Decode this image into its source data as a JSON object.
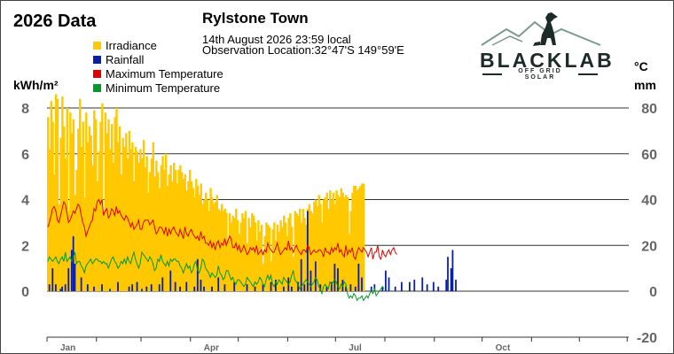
{
  "header": {
    "chart_heading": "2026 Data",
    "location_title": "Rylstone Town",
    "timestamp": "14th August 2026  23:59 local",
    "observation": "Observation Location:32°47'S 149°59'E"
  },
  "logo": {
    "word": "BLACKLAB",
    "tagline": "OFF GRID SOLAR",
    "colors": {
      "mountain": "#7a9a8f",
      "dog": "#1d2b28",
      "bar": "#1d2b28"
    }
  },
  "colors": {
    "irradiance": "#ffc800",
    "rainfall": "#0a1fa8",
    "max_temp": "#e00000",
    "min_temp": "#009a2a",
    "grid": "#333333",
    "tick_text": "#666666"
  },
  "chart_data": {
    "type": "bar",
    "title": "2026 Data",
    "left_axis": {
      "label": "kWh/m²",
      "ticks": [
        0,
        2,
        4,
        6,
        8
      ],
      "range": [
        -2,
        8
      ]
    },
    "right_axis": {
      "label_top": "°C",
      "label_bottom": "mm",
      "ticks": [
        -20,
        0,
        20,
        40,
        60,
        80
      ],
      "range": [
        -20,
        80
      ]
    },
    "x_axis": {
      "months": [
        "Jan",
        "Apr",
        "Jul",
        "Oct"
      ],
      "range_days": [
        1,
        365
      ]
    },
    "legend": [
      {
        "name": "Irradiance",
        "color_key": "irradiance"
      },
      {
        "name": "Rainfall",
        "color_key": "rainfall"
      },
      {
        "name": "Maximum Temperature",
        "color_key": "max_temp"
      },
      {
        "name": "Minimum Temperature",
        "color_key": "min_temp"
      }
    ],
    "grid": true,
    "series": [
      {
        "name": "Irradiance",
        "axis": "left",
        "kind": "bar",
        "values": [
          7.6,
          6.2,
          8.3,
          7.4,
          5.1,
          8.6,
          8.4,
          3.8,
          6.7,
          8.5,
          7.2,
          5.8,
          8.0,
          3.5,
          7.8,
          6.9,
          7.5,
          4.2,
          5.3,
          7.1,
          8.4,
          6.3,
          7.4,
          4.1,
          7.8,
          6.5,
          7.2,
          6.8,
          5.5,
          7.9,
          7.5,
          4.8,
          6.1,
          7.4,
          8.2,
          3.5,
          7.8,
          6.9,
          7.5,
          6.2,
          7.3,
          5.6,
          7.6,
          8.0,
          6.5,
          7.2,
          5.1,
          6.7,
          6.3,
          6.9,
          5.8,
          7.0,
          6.2,
          6.5,
          4.8,
          6.3,
          6.1,
          5.6,
          6.2,
          5.8,
          6.6,
          5.4,
          5.9,
          4.3,
          5.2,
          5.8,
          6.5,
          5.0,
          5.7,
          5.2,
          4.5,
          5.5,
          5.9,
          5.3,
          6.0,
          4.6,
          5.1,
          5.5,
          4.8,
          5.6,
          5.3,
          4.7,
          5.3,
          5.5,
          5.2,
          4.9,
          5.1,
          4.4,
          4.8,
          5.3,
          4.8,
          4.5,
          4.1,
          4.9,
          4.6,
          4.2,
          4.7,
          3.8,
          4.0,
          4.3,
          4.0,
          3.5,
          4.5,
          4.1,
          3.8,
          3.9,
          4.2,
          3.6,
          3.5,
          3.8,
          3.5,
          3.6,
          3.4,
          2.3,
          3.4,
          3.0,
          3.3,
          3.2,
          3.6,
          3.1,
          2.5,
          3.0,
          3.4,
          3.2,
          3.5,
          2.1,
          3.2,
          2.8,
          3.4,
          3.3,
          3.0,
          2.2,
          3.1,
          2.6,
          2.9,
          1.2,
          2.4,
          3.0,
          2.9,
          2.8,
          1.3,
          2.7,
          3.0,
          2.2,
          2.9,
          2.6,
          3.1,
          2.8,
          3.3,
          3.0,
          2.4,
          3.2,
          3.4,
          2.8,
          1.5,
          3.5,
          3.4,
          3.3,
          3.6,
          3.0,
          3.6,
          3.2,
          2.9,
          3.6,
          3.8,
          3.5,
          3.4,
          3.9,
          4.0,
          3.7,
          4.2,
          3.8,
          3.0,
          4.0,
          4.1,
          4.3,
          3.6,
          4.4,
          4.0,
          4.3,
          3.8,
          4.4,
          4.2,
          4.1,
          4.5,
          4.3,
          4.1,
          4.2,
          4.1,
          2.5,
          3.5,
          4.3,
          4.6,
          4.6,
          4.4,
          4.5,
          4.6,
          4.7,
          4.7
        ]
      },
      {
        "name": "Rainfall",
        "axis": "right",
        "kind": "bar",
        "values": [
          0,
          0,
          0,
          0,
          0,
          0,
          0,
          0,
          0,
          2,
          3,
          0,
          0,
          0,
          0,
          0,
          0,
          0,
          0,
          0,
          0,
          0,
          0,
          0,
          0,
          0,
          9,
          12,
          0,
          0,
          0,
          0,
          0,
          0,
          0,
          0,
          0,
          0,
          0,
          0,
          0,
          0,
          0,
          0,
          0,
          2,
          0,
          0,
          0,
          0,
          0,
          0,
          0,
          0,
          0,
          0,
          0,
          0,
          0,
          0,
          0,
          0,
          0,
          0,
          0,
          0,
          0,
          0,
          0,
          0,
          0,
          0,
          0,
          0,
          0,
          0,
          0,
          0,
          0,
          0,
          0,
          0,
          0,
          0,
          0,
          0,
          0,
          0,
          0,
          0,
          0,
          0,
          0,
          0,
          0,
          0,
          0,
          0,
          0,
          0,
          0,
          0,
          0,
          0,
          0,
          0,
          0,
          0,
          0,
          0,
          0,
          0,
          0,
          0,
          0,
          0,
          0,
          0,
          0,
          0,
          0,
          0,
          0,
          0,
          0,
          0,
          0,
          0,
          0,
          0,
          0,
          0,
          0,
          0,
          0,
          0,
          0,
          0,
          0,
          0,
          0,
          0,
          0,
          0,
          0,
          0,
          0,
          0,
          0,
          0,
          0,
          0,
          0,
          0,
          0,
          0,
          0,
          0,
          0,
          0,
          0,
          0,
          0,
          0,
          0,
          0,
          0,
          0,
          0,
          0,
          0,
          0,
          0,
          0,
          0,
          0,
          0,
          0,
          0,
          0,
          0,
          0,
          0,
          0,
          0,
          0,
          0,
          0,
          0,
          0,
          0,
          0,
          0,
          0,
          0,
          0,
          0,
          0,
          0,
          0,
          0,
          0,
          0,
          0,
          0,
          0,
          0,
          0,
          0,
          0,
          0,
          0,
          0,
          0,
          0,
          0,
          0,
          0,
          0,
          0,
          0,
          0,
          0,
          0,
          0,
          0,
          0,
          0,
          0,
          0,
          0,
          0,
          0
        ],
        "points": [
          [
            2,
            3
          ],
          [
            4,
            10
          ],
          [
            6,
            3
          ],
          [
            9,
            1
          ],
          [
            10,
            2
          ],
          [
            12,
            3
          ],
          [
            14,
            10
          ],
          [
            16,
            18
          ],
          [
            17,
            24
          ],
          [
            18,
            12
          ],
          [
            22,
            6
          ],
          [
            26,
            3
          ],
          [
            30,
            2
          ],
          [
            35,
            3
          ],
          [
            40,
            1
          ],
          [
            45,
            4
          ],
          [
            52,
            2
          ],
          [
            54,
            3
          ],
          [
            57,
            4
          ],
          [
            60,
            1
          ],
          [
            63,
            2
          ],
          [
            66,
            3
          ],
          [
            71,
            3
          ],
          [
            73,
            6
          ],
          [
            78,
            9
          ],
          [
            81,
            4
          ],
          [
            84,
            2
          ],
          [
            88,
            4
          ],
          [
            93,
            2
          ],
          [
            95,
            14
          ],
          [
            97,
            5
          ],
          [
            99,
            2
          ],
          [
            104,
            2
          ],
          [
            108,
            6
          ],
          [
            112,
            3
          ],
          [
            118,
            4
          ],
          [
            126,
            3
          ],
          [
            131,
            2
          ],
          [
            136,
            3
          ],
          [
            141,
            4
          ],
          [
            144,
            5
          ],
          [
            149,
            2
          ],
          [
            152,
            6
          ],
          [
            154,
            2
          ],
          [
            158,
            4
          ],
          [
            160,
            14
          ],
          [
            162,
            3
          ],
          [
            164,
            35
          ],
          [
            166,
            9
          ],
          [
            169,
            13
          ],
          [
            172,
            3
          ],
          [
            176,
            2
          ],
          [
            179,
            4
          ],
          [
            181,
            12
          ],
          [
            183,
            10
          ],
          [
            186,
            5
          ],
          [
            188,
            2
          ],
          [
            191,
            3
          ],
          [
            194,
            2
          ],
          [
            196,
            12
          ],
          [
            198,
            6
          ],
          [
            204,
            2
          ],
          [
            206,
            3
          ],
          [
            211,
            2
          ],
          [
            213,
            9
          ],
          [
            215,
            6
          ],
          [
            219,
            2
          ],
          [
            223,
            4
          ],
          [
            228,
            4
          ],
          [
            231,
            5
          ],
          [
            236,
            6
          ],
          [
            239,
            3
          ],
          [
            243,
            4
          ],
          [
            246,
            2
          ],
          [
            251,
            5
          ],
          [
            252,
            15
          ],
          [
            254,
            10
          ],
          [
            255,
            18
          ],
          [
            257,
            5
          ]
        ]
      },
      {
        "name": "Maximum Temperature",
        "axis": "right",
        "kind": "line",
        "values": [
          28,
          30,
          33,
          36,
          37,
          35,
          31,
          30,
          33,
          36,
          39,
          38,
          34,
          30,
          31,
          33,
          35,
          34,
          36,
          38,
          37,
          33,
          30,
          28,
          24,
          26,
          28,
          30,
          31,
          36,
          35,
          39,
          40,
          38,
          40,
          33,
          35,
          36,
          32,
          33,
          36,
          35,
          33,
          37,
          34,
          35,
          33,
          32,
          31,
          33,
          32,
          30,
          28,
          30,
          27,
          28,
          29,
          31,
          27,
          27,
          30,
          31,
          31,
          31,
          29,
          30,
          31,
          28,
          25,
          26,
          28,
          28,
          27,
          25,
          28,
          24,
          27,
          25,
          27,
          28,
          26,
          25,
          24,
          27,
          25,
          23,
          28,
          25,
          24,
          26,
          27,
          25,
          24,
          23,
          24,
          22,
          26,
          23,
          24,
          21,
          21,
          20,
          22,
          19,
          21,
          18,
          21,
          22,
          19,
          21,
          20,
          23,
          20,
          22,
          24,
          23,
          19,
          19,
          21,
          18,
          20,
          17,
          18,
          20,
          18,
          16,
          17,
          19,
          18,
          19,
          17,
          20,
          16,
          17,
          18,
          16,
          18,
          17,
          21,
          19,
          18,
          17,
          17,
          19,
          21,
          18,
          16,
          17,
          18,
          19,
          18,
          22,
          18,
          19,
          17,
          19,
          20,
          18,
          17,
          16,
          18,
          18,
          17,
          20,
          19,
          16,
          17,
          18,
          17,
          17,
          18,
          18,
          17,
          15,
          19,
          17,
          17,
          16,
          19,
          17,
          19,
          18,
          21,
          17,
          18,
          16,
          15,
          20,
          16,
          18,
          17,
          19,
          15,
          14,
          17,
          19,
          18,
          17,
          19,
          18,
          17,
          15,
          17,
          19,
          14,
          17,
          17,
          20,
          15,
          14,
          18,
          16,
          15,
          17,
          18,
          16,
          18,
          19,
          17,
          16
        ]
      },
      {
        "name": "Minimum Temperature",
        "axis": "right",
        "kind": "line",
        "values": [
          13,
          15,
          14,
          13,
          14,
          15,
          13,
          12,
          14,
          15,
          13,
          17,
          13,
          14,
          15,
          13,
          15,
          17,
          12,
          13,
          13,
          11,
          10,
          8,
          11,
          12,
          13,
          14,
          12,
          13,
          14,
          14,
          13,
          13,
          12,
          13,
          12,
          12,
          10,
          12,
          14,
          15,
          13,
          12,
          10,
          11,
          13,
          12,
          14,
          12,
          15,
          13,
          12,
          15,
          17,
          14,
          12,
          10,
          12,
          17,
          16,
          15,
          14,
          13,
          15,
          14,
          12,
          9,
          10,
          14,
          13,
          16,
          13,
          12,
          11,
          13,
          11,
          14,
          13,
          14,
          14,
          13,
          13,
          11,
          10,
          8,
          10,
          12,
          10,
          11,
          8,
          9,
          12,
          13,
          9,
          8,
          10,
          14,
          13,
          10,
          9,
          8,
          6,
          8,
          7,
          6,
          7,
          11,
          8,
          7,
          5,
          6,
          9,
          9,
          7,
          5,
          6,
          4,
          3,
          5,
          5,
          4,
          3,
          2,
          3,
          6,
          5,
          4,
          3,
          2,
          4,
          3,
          4,
          6,
          5,
          3,
          2,
          5,
          7,
          5,
          7,
          3,
          2,
          4,
          3,
          5,
          4,
          3,
          6,
          5,
          4,
          3,
          4,
          7,
          9,
          5,
          4,
          3,
          1,
          2,
          3,
          4,
          5,
          4,
          3,
          2,
          3,
          4,
          6,
          5,
          2,
          1,
          -1,
          2,
          3,
          2,
          1,
          4,
          3,
          4,
          5,
          4,
          2,
          1,
          3,
          2,
          4,
          3,
          -1,
          -3,
          -2,
          -3,
          -1,
          -2,
          -4,
          -3,
          -3,
          -2,
          -4,
          -3,
          -2,
          -3,
          -1,
          0,
          -1,
          1,
          -2,
          -1,
          0,
          1,
          2,
          1
        ]
      }
    ]
  }
}
